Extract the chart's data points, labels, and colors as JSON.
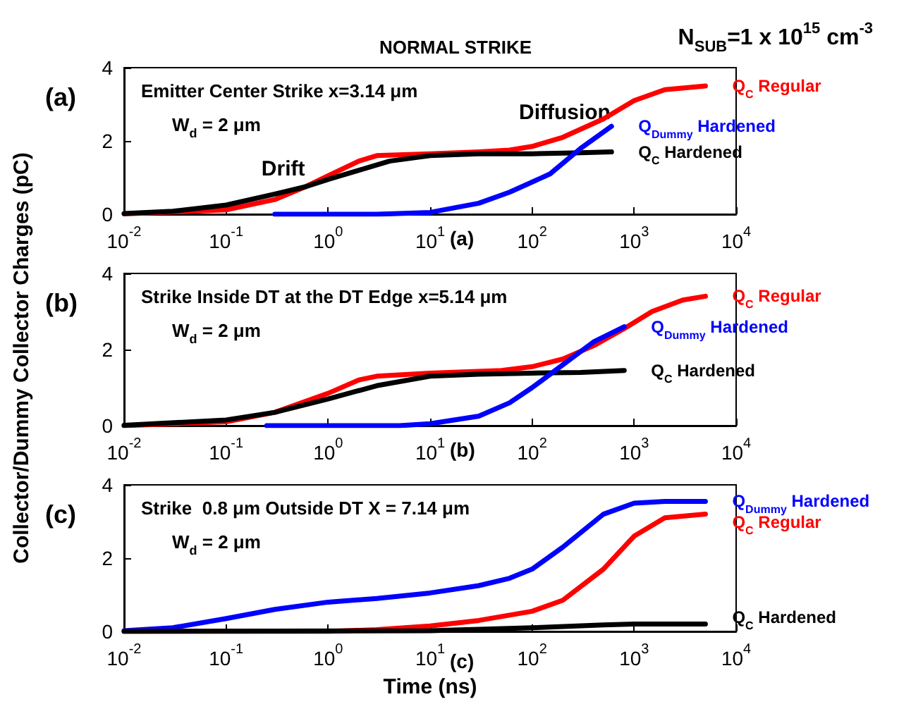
{
  "chart_data": [
    {
      "type": "line",
      "title": "NORMAL STRIKE",
      "subtitle": "N$_{SUB}$=1 x 10$^{15}$ cm$^{-3}$",
      "log": "x",
      "grid": false,
      "marker": "none",
      "xlim": [
        0.01,
        10000
      ],
      "xticks": [
        {
          "value": 0.01,
          "label": "10$^{-2}$"
        },
        {
          "value": 0.1,
          "label": "10$^{-1}$"
        },
        {
          "value": 1,
          "label": "10$^{0}$"
        },
        {
          "value": 10,
          "label": "10$^{1}$"
        },
        {
          "value": 100,
          "label": "10$^{2}$"
        },
        {
          "value": 1000,
          "label": "10$^{3}$"
        },
        {
          "value": 10000,
          "label": "10$^{4}$"
        }
      ],
      "ylim": [
        0,
        4
      ],
      "yticks": [
        0,
        2,
        4
      ],
      "annotations": [
        "(a)",
        "(a)",
        "Emitter Center Strike x=3.14 μm",
        "W$_{d}$ = 2 μm",
        "Drift",
        "Diffusion"
      ],
      "series": [
        {
          "name": "Q$_{C}$ Regular",
          "color": "#ff0000",
          "x": [
            0.01,
            0.1,
            0.3,
            0.6,
            1,
            2,
            3,
            10,
            30,
            60,
            100,
            200,
            500,
            1000,
            2000,
            5000
          ],
          "values": [
            0.01,
            0.12,
            0.4,
            0.75,
            1.05,
            1.45,
            1.6,
            1.65,
            1.7,
            1.75,
            1.85,
            2.1,
            2.6,
            3.1,
            3.4,
            3.5
          ]
        },
        {
          "name": "Q$_{C}$ Hardened",
          "color": "#000000",
          "x": [
            0.01,
            0.03,
            0.1,
            0.3,
            0.6,
            1,
            2,
            4,
            10,
            30,
            100,
            300,
            600
          ],
          "values": [
            0.02,
            0.08,
            0.25,
            0.55,
            0.75,
            0.95,
            1.2,
            1.45,
            1.6,
            1.65,
            1.65,
            1.68,
            1.7
          ]
        },
        {
          "name": "Q$_{Dummy}$ Hardened",
          "color": "#0000ff",
          "x": [
            0.3,
            3,
            10,
            30,
            60,
            150,
            300,
            600
          ],
          "values": [
            0,
            0,
            0.05,
            0.3,
            0.6,
            1.1,
            1.8,
            2.4
          ]
        }
      ]
    },
    {
      "type": "line",
      "ylabel": "Collector/Dummy Collector Charges (pC)",
      "log": "x",
      "grid": false,
      "marker": "none",
      "xlim": [
        0.01,
        10000
      ],
      "xticks": [
        {
          "value": 0.01,
          "label": "10$^{-2}$"
        },
        {
          "value": 0.1,
          "label": "10$^{-1}$"
        },
        {
          "value": 1,
          "label": "10$^{0}$"
        },
        {
          "value": 10,
          "label": "10$^{1}$"
        },
        {
          "value": 100,
          "label": "10$^{2}$"
        },
        {
          "value": 1000,
          "label": "10$^{3}$"
        },
        {
          "value": 10000,
          "label": "10$^{4}$"
        }
      ],
      "ylim": [
        0,
        4
      ],
      "yticks": [
        0,
        2,
        4
      ],
      "annotations": [
        "(b)",
        "(b)",
        "Strike Inside DT at the DT Edge x=5.14 μm",
        "W$_{d}$ = 2 μm"
      ],
      "series": [
        {
          "name": "Q$_{C}$ Regular",
          "color": "#ff0000",
          "x": [
            0.01,
            0.1,
            0.3,
            1,
            2,
            3,
            10,
            50,
            100,
            200,
            400,
            800,
            1500,
            3000,
            5000
          ],
          "values": [
            0,
            0.1,
            0.35,
            0.85,
            1.2,
            1.3,
            1.38,
            1.45,
            1.55,
            1.75,
            2.1,
            2.55,
            3.0,
            3.3,
            3.4
          ]
        },
        {
          "name": "Q$_{C}$ Hardened",
          "color": "#000000",
          "x": [
            0.01,
            0.1,
            0.3,
            1,
            3,
            10,
            30,
            100,
            300,
            800
          ],
          "values": [
            0.01,
            0.15,
            0.35,
            0.7,
            1.05,
            1.3,
            1.35,
            1.38,
            1.4,
            1.45
          ]
        },
        {
          "name": "Q$_{Dummy}$ Hardened",
          "color": "#0000ff",
          "x": [
            0.25,
            5,
            10,
            30,
            60,
            100,
            200,
            400,
            800
          ],
          "values": [
            0,
            0,
            0.05,
            0.25,
            0.6,
            1.0,
            1.6,
            2.2,
            2.6
          ]
        }
      ]
    },
    {
      "type": "line",
      "xlabel": "Time (ns)",
      "log": "x",
      "grid": false,
      "marker": "none",
      "xlim": [
        0.01,
        10000
      ],
      "xticks": [
        {
          "value": 0.01,
          "label": "10$^{-2}$"
        },
        {
          "value": 0.1,
          "label": "10$^{-1}$"
        },
        {
          "value": 1,
          "label": "10$^{0}$"
        },
        {
          "value": 10,
          "label": "10$^{1}$"
        },
        {
          "value": 100,
          "label": "10$^{2}$"
        },
        {
          "value": 1000,
          "label": "10$^{3}$"
        },
        {
          "value": 10000,
          "label": "10$^{4}$"
        }
      ],
      "ylim": [
        0,
        4
      ],
      "yticks": [
        0,
        2,
        4
      ],
      "annotations": [
        "(c)",
        "(c)",
        "Strike  0.8 μm Outside DT X = 7.14 μm",
        "W$_{d}$ = 2 μm"
      ],
      "series": [
        {
          "name": "Q$_{Dummy}$ Hardened",
          "color": "#0000ff",
          "x": [
            0.01,
            0.03,
            0.1,
            0.3,
            1,
            3,
            10,
            30,
            60,
            100,
            200,
            500,
            1000,
            2000,
            5000
          ],
          "values": [
            0.02,
            0.1,
            0.35,
            0.6,
            0.8,
            0.9,
            1.05,
            1.25,
            1.45,
            1.7,
            2.3,
            3.2,
            3.5,
            3.55,
            3.55
          ]
        },
        {
          "name": "Q$_{C}$ Regular",
          "color": "#ff0000",
          "x": [
            0.01,
            1,
            3,
            10,
            30,
            100,
            200,
            500,
            1000,
            2000,
            5000
          ],
          "values": [
            0,
            0,
            0.05,
            0.15,
            0.3,
            0.55,
            0.85,
            1.7,
            2.6,
            3.1,
            3.2
          ]
        },
        {
          "name": "Q$_{C}$ Hardened",
          "color": "#000000",
          "x": [
            0.01,
            10,
            100,
            500,
            1000,
            5000
          ],
          "values": [
            0,
            0.02,
            0.1,
            0.18,
            0.2,
            0.2
          ]
        }
      ]
    }
  ]
}
